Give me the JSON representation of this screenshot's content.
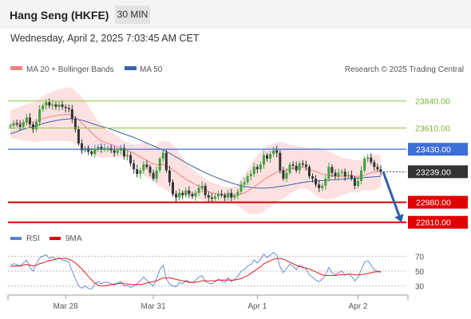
{
  "header": {
    "instrument": "Hang Seng (HKFE)",
    "timeframe": "30 MIN",
    "datetime": "Wednesday, April 2, 2025 7:03:45 AM CET"
  },
  "legend": {
    "ma20": "MA 20 + Bollinger Bands",
    "ma50": "MA 50",
    "copyright": "Research © 2025 Trading Central",
    "rsi": "RSI",
    "ma9": "9MA"
  },
  "colors": {
    "ma20": "#f08080",
    "bollinger": "#fcd9d9",
    "ma50": "#3a62a7",
    "support": "#e00000",
    "resistance_blue": "#3d6fd6",
    "resistance_green": "#8cc63f",
    "current": "#333333",
    "rsi": "#5a82d6",
    "rsi_ma": "#e00000",
    "up": "#3f9f3f",
    "down": "#333333"
  },
  "chart_data": [
    {
      "type": "candlestick",
      "title": "Hang Seng (HKFE)",
      "timeframe": "30 MIN",
      "x_ticks": [
        "Mar 28",
        "Mar 31",
        "Apr 1",
        "Apr 2"
      ],
      "ylim": [
        22720,
        24020
      ],
      "levels": [
        {
          "value": 23840.0,
          "label": "23840.00",
          "kind": "resistance",
          "color": "green"
        },
        {
          "value": 23610.0,
          "label": "23610.00",
          "kind": "resistance",
          "color": "green"
        },
        {
          "value": 23430.0,
          "label": "23430.00",
          "kind": "resistance",
          "color": "blue"
        },
        {
          "value": 23239.0,
          "label": "23239.00",
          "kind": "current",
          "color": "dark"
        },
        {
          "value": 22980.0,
          "label": "22980.00",
          "kind": "support",
          "color": "red"
        },
        {
          "value": 22810.0,
          "label": "22810.00",
          "kind": "support",
          "color": "red"
        }
      ],
      "arrow": {
        "from": 23239,
        "to": 22810,
        "direction": "down"
      },
      "close": [
        23630,
        23650,
        23640,
        23620,
        23660,
        23700,
        23640,
        23600,
        23660,
        23770,
        23800,
        23830,
        23800,
        23810,
        23790,
        23810,
        23790,
        23780,
        23770,
        23690,
        23600,
        23480,
        23420,
        23440,
        23410,
        23390,
        23430,
        23450,
        23430,
        23440,
        23440,
        23420,
        23400,
        23420,
        23440,
        23370,
        23380,
        23310,
        23260,
        23220,
        23250,
        23300,
        23280,
        23230,
        23180,
        23250,
        23350,
        23400,
        23250,
        23150,
        23050,
        23020,
        23060,
        23040,
        23080,
        23050,
        23030,
        23060,
        23100,
        23120,
        23040,
        23020,
        23010,
        23030,
        23050,
        23040,
        23020,
        23060,
        23020,
        23040,
        23070,
        23130,
        23150,
        23200,
        23220,
        23280,
        23260,
        23300,
        23380,
        23350,
        23390,
        23420,
        23400,
        23250,
        23180,
        23230,
        23300,
        23290,
        23250,
        23310,
        23300,
        23280,
        23200,
        23180,
        23130,
        23100,
        23120,
        23180,
        23280,
        23230,
        23200,
        23230,
        23240,
        23200,
        23210,
        23180,
        23120,
        23160,
        23250,
        23350,
        23360,
        23320,
        23280,
        23260,
        23239
      ],
      "ma20": [
        23640,
        23645,
        23648,
        23650,
        23652,
        23657,
        23660,
        23662,
        23665,
        23680,
        23690,
        23700,
        23705,
        23710,
        23715,
        23720,
        23722,
        23725,
        23727,
        23720,
        23700,
        23680,
        23650,
        23625,
        23600,
        23570,
        23545,
        23520,
        23500,
        23490,
        23480,
        23470,
        23460,
        23450,
        23440,
        23430,
        23420,
        23410,
        23395,
        23380,
        23365,
        23350,
        23335,
        23320,
        23305,
        23300,
        23300,
        23300,
        23290,
        23275,
        23255,
        23235,
        23215,
        23195,
        23175,
        23160,
        23145,
        23130,
        23115,
        23100,
        23085,
        23070,
        23060,
        23055,
        23050,
        23045,
        23040,
        23038,
        23036,
        23037,
        23040,
        23050,
        23060,
        23075,
        23090,
        23110,
        23130,
        23150,
        23170,
        23190,
        23205,
        23220,
        23235,
        23245,
        23250,
        23255,
        23260,
        23265,
        23270,
        23275,
        23275,
        23270,
        23260,
        23250,
        23240,
        23230,
        23220,
        23215,
        23210,
        23205,
        23200,
        23200,
        23200,
        23200,
        23205,
        23205,
        23200,
        23200,
        23205,
        23210,
        23220,
        23230,
        23235,
        23240,
        23245
      ],
      "bb_upper": [
        23760,
        23770,
        23780,
        23790,
        23800,
        23810,
        23820,
        23830,
        23840,
        23860,
        23880,
        23900,
        23910,
        23920,
        23930,
        23940,
        23945,
        23950,
        23955,
        23950,
        23930,
        23900,
        23870,
        23840,
        23800,
        23750,
        23710,
        23670,
        23640,
        23620,
        23600,
        23580,
        23560,
        23540,
        23520,
        23500,
        23490,
        23480,
        23470,
        23470,
        23480,
        23490,
        23480,
        23460,
        23450,
        23470,
        23490,
        23500,
        23500,
        23490,
        23470,
        23440,
        23400,
        23360,
        23320,
        23290,
        23260,
        23240,
        23220,
        23200,
        23180,
        23160,
        23150,
        23140,
        23130,
        23120,
        23110,
        23110,
        23110,
        23115,
        23130,
        23170,
        23210,
        23260,
        23300,
        23340,
        23380,
        23410,
        23440,
        23460,
        23470,
        23480,
        23490,
        23490,
        23490,
        23480,
        23470,
        23465,
        23460,
        23455,
        23450,
        23445,
        23440,
        23440,
        23440,
        23440,
        23435,
        23425,
        23415,
        23400,
        23385,
        23370,
        23360,
        23355,
        23350,
        23345,
        23340,
        23335,
        23335,
        23340,
        23360,
        23380,
        23385,
        23385,
        23380
      ],
      "bb_lower": [
        23520,
        23520,
        23516,
        23510,
        23504,
        23504,
        23500,
        23494,
        23490,
        23500,
        23500,
        23500,
        23500,
        23500,
        23500,
        23500,
        23499,
        23500,
        23499,
        23490,
        23470,
        23460,
        23430,
        23410,
        23400,
        23390,
        23380,
        23370,
        23360,
        23360,
        23360,
        23360,
        23360,
        23360,
        23360,
        23360,
        23350,
        23340,
        23320,
        23290,
        23250,
        23210,
        23190,
        23180,
        23160,
        23130,
        23110,
        23100,
        23080,
        23060,
        23040,
        23030,
        23030,
        23030,
        23030,
        23030,
        23030,
        23020,
        23010,
        23000,
        22990,
        22980,
        22970,
        22970,
        22970,
        22970,
        22970,
        22966,
        22962,
        22959,
        22950,
        22930,
        22910,
        22890,
        22880,
        22880,
        22880,
        22890,
        22900,
        22920,
        22940,
        22960,
        22980,
        23000,
        23010,
        23030,
        23050,
        23065,
        23080,
        23095,
        23100,
        23095,
        23080,
        23060,
        23040,
        23020,
        23005,
        23005,
        23005,
        23010,
        23015,
        23030,
        23040,
        23045,
        23060,
        23065,
        23060,
        23065,
        23075,
        23080,
        23080,
        23080,
        23085,
        23095,
        23110
      ],
      "ma50": [
        23560,
        23570,
        23580,
        23590,
        23600,
        23608,
        23615,
        23622,
        23630,
        23640,
        23648,
        23655,
        23662,
        23668,
        23673,
        23678,
        23682,
        23685,
        23688,
        23688,
        23686,
        23682,
        23676,
        23668,
        23660,
        23650,
        23640,
        23632,
        23624,
        23616,
        23610,
        23600,
        23590,
        23580,
        23570,
        23560,
        23550,
        23540,
        23530,
        23518,
        23506,
        23494,
        23482,
        23470,
        23458,
        23446,
        23434,
        23422,
        23410,
        23396,
        23380,
        23364,
        23348,
        23332,
        23316,
        23300,
        23286,
        23272,
        23258,
        23244,
        23230,
        23218,
        23206,
        23195,
        23184,
        23173,
        23163,
        23153,
        23144,
        23136,
        23128,
        23121,
        23115,
        23110,
        23106,
        23103,
        23101,
        23100,
        23100,
        23101,
        23103,
        23106,
        23110,
        23114,
        23118,
        23123,
        23128,
        23133,
        23138,
        23143,
        23148,
        23152,
        23155,
        23158,
        23160,
        23162,
        23164,
        23166,
        23168,
        23170,
        23172,
        23174,
        23176,
        23178,
        23180,
        23182,
        23184,
        23186,
        23188,
        23190,
        23192,
        23194,
        23196,
        23198,
        23200
      ]
    },
    {
      "type": "line",
      "title": "RSI",
      "series_names": [
        "RSI",
        "9MA"
      ],
      "y_ticks": [
        70,
        50,
        30
      ],
      "ylim": [
        20,
        80
      ],
      "rsi": [
        58,
        60,
        59,
        57,
        61,
        65,
        55,
        50,
        60,
        68,
        70,
        72,
        67,
        69,
        66,
        68,
        65,
        64,
        62,
        50,
        40,
        30,
        27,
        30,
        27,
        26,
        33,
        36,
        33,
        35,
        35,
        33,
        31,
        34,
        36,
        30,
        31,
        28,
        30,
        33,
        37,
        42,
        38,
        33,
        30,
        40,
        52,
        58,
        40,
        33,
        30,
        29,
        35,
        33,
        38,
        36,
        34,
        38,
        42,
        44,
        36,
        34,
        33,
        36,
        39,
        37,
        35,
        41,
        36,
        39,
        43,
        50,
        52,
        57,
        59,
        65,
        61,
        66,
        73,
        68,
        72,
        75,
        72,
        56,
        48,
        54,
        59,
        57,
        52,
        58,
        56,
        53,
        45,
        42,
        38,
        36,
        39,
        45,
        55,
        48,
        45,
        48,
        50,
        45,
        46,
        43,
        37,
        42,
        52,
        62,
        64,
        58,
        52,
        50,
        48
      ],
      "rsi_9ma": [
        56,
        57,
        57,
        57,
        58,
        59,
        58,
        57,
        58,
        60,
        61,
        63,
        64,
        65,
        66,
        67,
        67,
        67,
        66,
        64,
        61,
        57,
        53,
        48,
        43,
        38,
        34,
        31,
        30,
        30,
        31,
        32,
        33,
        33,
        34,
        33,
        33,
        32,
        32,
        32,
        32,
        33,
        34,
        35,
        36,
        37,
        39,
        41,
        41,
        41,
        40,
        39,
        38,
        37,
        36,
        35,
        35,
        35,
        36,
        37,
        37,
        37,
        37,
        37,
        38,
        38,
        38,
        38,
        38,
        38,
        39,
        40,
        42,
        44,
        47,
        50,
        53,
        56,
        60,
        62,
        64,
        66,
        67,
        67,
        66,
        64,
        62,
        60,
        58,
        56,
        55,
        54,
        53,
        51,
        49,
        47,
        45,
        44,
        44,
        44,
        44,
        45,
        45,
        45,
        46,
        46,
        45,
        45,
        45,
        46,
        47,
        48,
        49,
        49,
        50
      ]
    }
  ]
}
